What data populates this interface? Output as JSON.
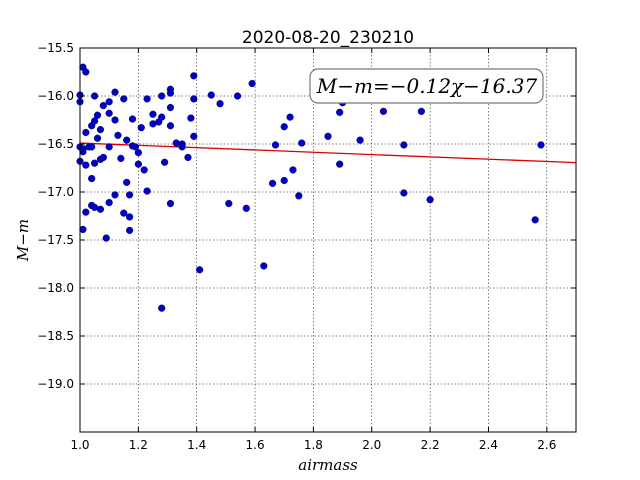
{
  "chart_data": {
    "type": "scatter",
    "title": "2020-08-20_230210",
    "xlabel": "airmass",
    "ylabel": "M−m",
    "xlim": [
      1.0,
      2.7
    ],
    "ylim": [
      -19.5,
      -15.5
    ],
    "y_inverted": true,
    "grid": true,
    "x_ticks": [
      "1.0",
      "1.2",
      "1.4",
      "1.6",
      "1.8",
      "2.0",
      "2.2",
      "2.4",
      "2.6"
    ],
    "y_ticks": [
      "−15.5",
      "−16.0",
      "−16.5",
      "−17.0",
      "−17.5",
      "−18.0",
      "−18.5",
      "−19.0"
    ],
    "annotation": "M−m=−0.12χ−16.37",
    "marker_color": "#0000cc",
    "fit_color": "#dd0000",
    "fit": {
      "slope": -0.12,
      "intercept": -16.37
    },
    "points": [
      [
        1.0,
        -15.99
      ],
      [
        1.0,
        -16.06
      ],
      [
        1.0,
        -16.53
      ],
      [
        1.0,
        -16.68
      ],
      [
        1.01,
        -15.7
      ],
      [
        1.02,
        -15.75
      ],
      [
        1.01,
        -16.55
      ],
      [
        1.02,
        -16.38
      ],
      [
        1.03,
        -16.53
      ],
      [
        1.04,
        -16.53
      ],
      [
        1.04,
        -16.31
      ],
      [
        1.05,
        -16.26
      ],
      [
        1.05,
        -16.0
      ],
      [
        1.06,
        -16.44
      ],
      [
        1.07,
        -16.35
      ],
      [
        1.06,
        -16.2
      ],
      [
        1.08,
        -16.1
      ],
      [
        1.1,
        -16.06
      ],
      [
        1.1,
        -16.18
      ],
      [
        1.12,
        -15.96
      ],
      [
        1.12,
        -16.25
      ],
      [
        1.13,
        -16.41
      ],
      [
        1.15,
        -16.03
      ],
      [
        1.16,
        -16.46
      ],
      [
        1.18,
        -16.24
      ],
      [
        1.19,
        -16.53
      ],
      [
        1.2,
        -16.71
      ],
      [
        1.21,
        -16.33
      ],
      [
        1.23,
        -16.03
      ],
      [
        1.25,
        -16.29
      ],
      [
        1.25,
        -16.19
      ],
      [
        1.27,
        -16.27
      ],
      [
        1.28,
        -16.22
      ],
      [
        1.28,
        -16.0
      ],
      [
        1.31,
        -15.93
      ],
      [
        1.31,
        -15.97
      ],
      [
        1.31,
        -16.12
      ],
      [
        1.31,
        -16.31
      ],
      [
        1.33,
        -16.49
      ],
      [
        1.35,
        -16.5
      ],
      [
        1.35,
        -16.53
      ],
      [
        1.38,
        -16.23
      ],
      [
        1.39,
        -16.42
      ],
      [
        1.39,
        -16.03
      ],
      [
        1.39,
        -15.79
      ],
      [
        1.45,
        -15.99
      ],
      [
        1.48,
        -16.08
      ],
      [
        1.54,
        -16.0
      ],
      [
        1.59,
        -15.87
      ],
      [
        1.01,
        -16.58
      ],
      [
        1.02,
        -16.72
      ],
      [
        1.04,
        -16.86
      ],
      [
        1.05,
        -16.7
      ],
      [
        1.07,
        -16.66
      ],
      [
        1.08,
        -16.64
      ],
      [
        1.1,
        -16.53
      ],
      [
        1.14,
        -16.65
      ],
      [
        1.16,
        -16.9
      ],
      [
        1.17,
        -17.03
      ],
      [
        1.12,
        -17.03
      ],
      [
        1.18,
        -16.52
      ],
      [
        1.2,
        -16.59
      ],
      [
        1.22,
        -16.77
      ],
      [
        1.23,
        -16.99
      ],
      [
        1.29,
        -16.69
      ],
      [
        1.37,
        -16.64
      ],
      [
        1.04,
        -17.14
      ],
      [
        1.02,
        -17.21
      ],
      [
        1.05,
        -17.16
      ],
      [
        1.07,
        -17.18
      ],
      [
        1.1,
        -17.11
      ],
      [
        1.15,
        -17.22
      ],
      [
        1.17,
        -17.26
      ],
      [
        1.01,
        -17.39
      ],
      [
        1.09,
        -17.48
      ],
      [
        1.17,
        -17.4
      ],
      [
        1.31,
        -17.12
      ],
      [
        1.28,
        -18.21
      ],
      [
        1.41,
        -17.81
      ],
      [
        1.51,
        -17.12
      ],
      [
        1.57,
        -17.17
      ],
      [
        1.63,
        -17.77
      ],
      [
        1.66,
        -16.91
      ],
      [
        1.67,
        -16.51
      ],
      [
        1.7,
        -16.88
      ],
      [
        1.7,
        -16.32
      ],
      [
        1.72,
        -16.22
      ],
      [
        1.73,
        -16.77
      ],
      [
        1.75,
        -17.04
      ],
      [
        1.76,
        -16.49
      ],
      [
        1.85,
        -16.42
      ],
      [
        1.89,
        -16.17
      ],
      [
        1.89,
        -16.71
      ],
      [
        1.9,
        -16.07
      ],
      [
        1.96,
        -16.46
      ],
      [
        2.04,
        -16.16
      ],
      [
        2.11,
        -16.51
      ],
      [
        2.11,
        -17.01
      ],
      [
        2.17,
        -16.16
      ],
      [
        2.2,
        -17.08
      ],
      [
        2.56,
        -17.29
      ],
      [
        2.58,
        -16.51
      ]
    ]
  }
}
